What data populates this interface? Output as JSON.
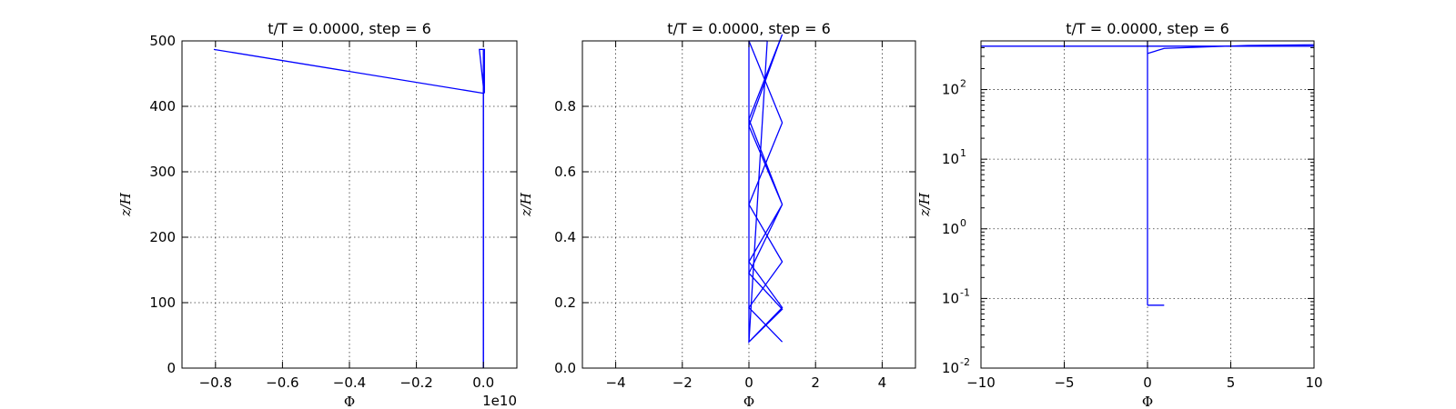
{
  "chart_data": [
    {
      "type": "line",
      "title": "t/T = 0.0000, step = 6",
      "xlabel": "Φ",
      "ylabel": "z/H",
      "xlim": [
        -0.9,
        0.1
      ],
      "ylim": [
        0,
        500
      ],
      "x_offset_text": "1e10",
      "yscale": "linear",
      "grid": true,
      "x_ticks": [
        -0.8,
        -0.6,
        -0.4,
        -0.2,
        0.0
      ],
      "x_tick_labels": [
        "−0.8",
        "−0.6",
        "−0.4",
        "−0.2",
        "0.0"
      ],
      "y_ticks": [
        0,
        100,
        200,
        300,
        400,
        500
      ],
      "y_tick_labels": [
        "0",
        "100",
        "200",
        "300",
        "400",
        "500"
      ],
      "series": [
        {
          "x": [
            0.0,
            0.0,
            0.0,
            0.0,
            0.0,
            0.0
          ],
          "y": [
            0.08,
            100,
            200,
            300,
            400,
            487
          ]
        },
        {
          "x": [
            0.0,
            0.0,
            0.0,
            0.0,
            0.0,
            0.0,
            -0.012,
            0.003,
            0.003
          ],
          "y": [
            0.08,
            100,
            200,
            300,
            400,
            430,
            487,
            487,
            420
          ]
        },
        {
          "x": [
            0.0,
            -0.805
          ],
          "y": [
            420,
            487
          ]
        }
      ]
    },
    {
      "type": "line",
      "title": "t/T = 0.0000, step = 6",
      "xlabel": "Φ",
      "ylabel": "z/H",
      "xlim": [
        -5,
        5
      ],
      "ylim": [
        0,
        1.0
      ],
      "yscale": "linear",
      "grid": true,
      "x_ticks": [
        -4,
        -2,
        0,
        2,
        4
      ],
      "x_tick_labels": [
        "−4",
        "−2",
        "0",
        "2",
        "4"
      ],
      "y_ticks": [
        0.0,
        0.2,
        0.4,
        0.6,
        0.8
      ],
      "y_tick_labels": [
        "0.0",
        "0.2",
        "0.4",
        "0.6",
        "0.8"
      ],
      "series": [
        {
          "x": [
            0,
            0
          ],
          "y": [
            0.08,
            1.0
          ]
        },
        {
          "x": [
            0,
            1,
            0,
            1,
            0,
            1,
            0,
            1,
            0,
            1,
            0,
            0.55
          ],
          "y": [
            0.08,
            0.185,
            0.325,
            0.5,
            0.76,
            1.02,
            0.74,
            0.5,
            0.29,
            0.18,
            0.08,
            1.0
          ]
        },
        {
          "x": [
            1,
            0,
            1,
            0,
            1,
            0,
            0.55
          ],
          "y": [
            0.08,
            0.185,
            0.325,
            0.5,
            0.75,
            1.0,
            1.0
          ]
        }
      ]
    },
    {
      "type": "line",
      "title": "t/T = 0.0000, step = 6",
      "xlabel": "Φ",
      "ylabel": "z/H",
      "xlim": [
        -10,
        10
      ],
      "ylim": [
        0.01,
        500
      ],
      "yscale": "log",
      "grid": true,
      "x_ticks": [
        -10,
        -5,
        0,
        5,
        10
      ],
      "x_tick_labels": [
        "−10",
        "−5",
        "0",
        "5",
        "10"
      ],
      "y_ticks": [
        0.01,
        0.1,
        1,
        10,
        100
      ],
      "y_tick_labels": [
        "10",
        "10",
        "10",
        "10",
        "10"
      ],
      "y_tick_exponents": [
        "-2",
        "-1",
        "0",
        "1",
        "2"
      ],
      "series": [
        {
          "x": [
            0,
            0
          ],
          "y": [
            0.08,
            500
          ]
        },
        {
          "x": [
            0,
            1
          ],
          "y": [
            0.08,
            0.08
          ]
        },
        {
          "x": [
            -10,
            10
          ],
          "y": [
            420,
            420
          ]
        },
        {
          "x": [
            0,
            1,
            6,
            10
          ],
          "y": [
            330,
            390,
            430,
            440
          ]
        }
      ]
    }
  ]
}
